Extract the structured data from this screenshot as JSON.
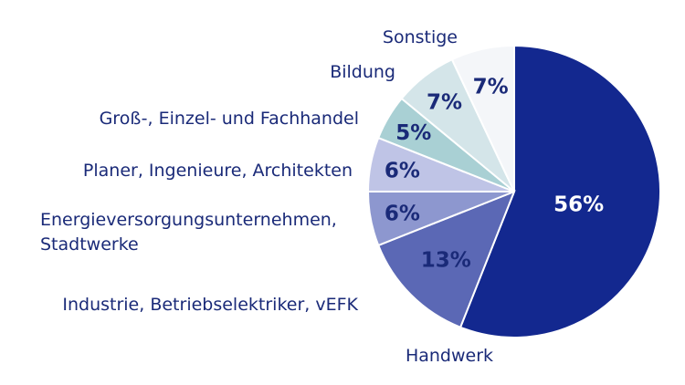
{
  "chart_data": {
    "type": "pie",
    "slices": [
      {
        "label": "Handwerk",
        "value": 56,
        "value_label": "56%",
        "color": "#13288f",
        "text_color": "#ffffff"
      },
      {
        "label": "Industrie, Betriebselektriker, vEFK",
        "value": 13,
        "value_label": "13%",
        "color": "#5b68b5",
        "text_color": "#1a2a78"
      },
      {
        "label": "Energieversorgungsunternehmen, Stadtwerke",
        "label_lines": [
          "Energieversorgungsunternehmen,",
          "Stadtwerke"
        ],
        "value": 6,
        "value_label": "6%",
        "color": "#8d97cf",
        "text_color": "#1a2a78"
      },
      {
        "label": "Planer, Ingenieure, Architekten",
        "value": 6,
        "value_label": "6%",
        "color": "#bfc4e6",
        "text_color": "#1a2a78"
      },
      {
        "label": "Groß-, Einzel- und Fachhandel",
        "value": 5,
        "value_label": "5%",
        "color": "#a9d0d4",
        "text_color": "#1a2a78"
      },
      {
        "label": "Bildung",
        "value": 7,
        "value_label": "7%",
        "color": "#d4e5e9",
        "text_color": "#1a2a78"
      },
      {
        "label": "Sonstige",
        "value": 7,
        "value_label": "7%",
        "color": "#f4f6f9",
        "text_color": "#1a2a78"
      }
    ],
    "start": "12 o'clock",
    "direction": "clockwise"
  }
}
